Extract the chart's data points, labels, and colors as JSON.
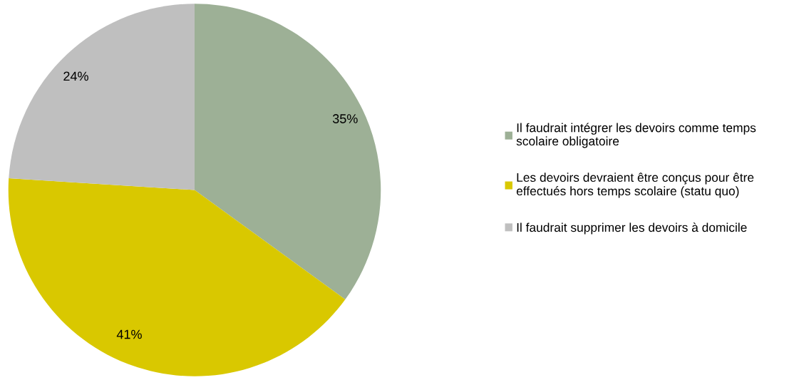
{
  "chart_data": {
    "type": "pie",
    "categories": [
      "Il faudrait intégrer les devoirs comme temps scolaire obligatoire",
      "Les devoirs devraient être conçus pour être effectués hors temps scolaire (statu quo)",
      "Il faudrait supprimer les devoirs à domicile"
    ],
    "values": [
      35,
      41,
      24
    ],
    "colors": [
      "#9db096",
      "#d9c800",
      "#bfbfbf"
    ],
    "value_labels": [
      "35%",
      "41%",
      "24%"
    ],
    "legend": "right"
  }
}
